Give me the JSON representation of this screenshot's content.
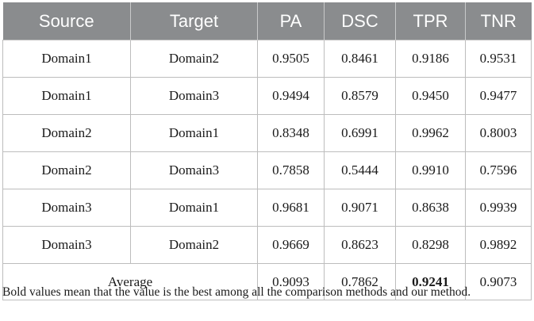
{
  "table": {
    "headers": [
      "Source",
      "Target",
      "PA",
      "DSC",
      "TPR",
      "TNR"
    ],
    "rows": [
      [
        "Domain1",
        "Domain2",
        "0.9505",
        "0.8461",
        "0.9186",
        "0.9531"
      ],
      [
        "Domain1",
        "Domain3",
        "0.9494",
        "0.8579",
        "0.9450",
        "0.9477"
      ],
      [
        "Domain2",
        "Domain1",
        "0.8348",
        "0.6991",
        "0.9962",
        "0.8003"
      ],
      [
        "Domain2",
        "Domain3",
        "0.7858",
        "0.5444",
        "0.9910",
        "0.7596"
      ],
      [
        "Domain3",
        "Domain1",
        "0.9681",
        "0.9071",
        "0.8638",
        "0.9939"
      ],
      [
        "Domain3",
        "Domain2",
        "0.9669",
        "0.8623",
        "0.8298",
        "0.9892"
      ]
    ],
    "average": {
      "label": "Average",
      "values": [
        "0.9093",
        "0.7862",
        "0.9241",
        "0.9073"
      ],
      "bold_index": 2
    }
  },
  "footnote": "Bold values mean that the value is the best among all the comparison methods and our method."
}
